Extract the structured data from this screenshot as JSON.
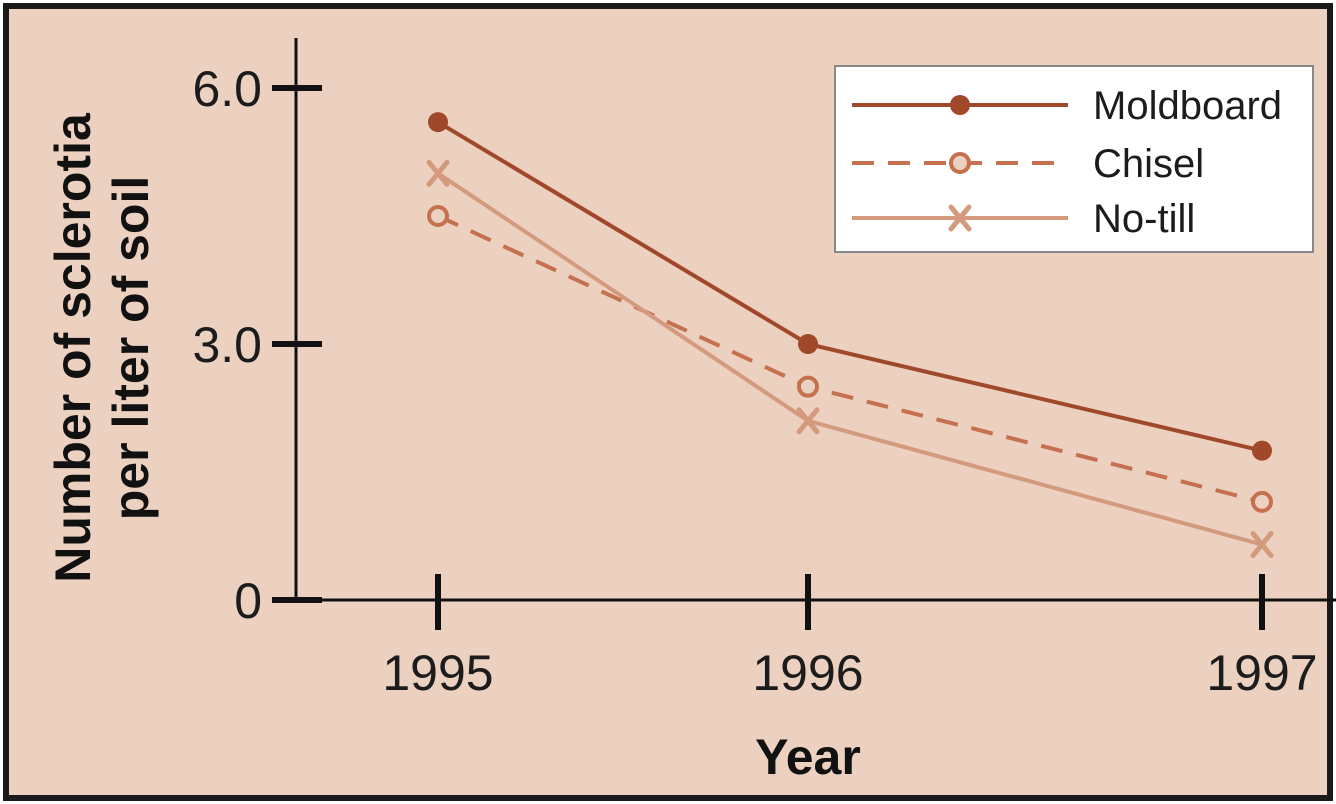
{
  "chart_data": {
    "type": "line",
    "title": "",
    "xlabel": "Year",
    "ylabel_lines": [
      "Number of sclerotia",
      "per liter of soil"
    ],
    "categories": [
      "1995",
      "1996",
      "1997"
    ],
    "y_ticks": [
      "0",
      "3.0",
      "6.0"
    ],
    "ylim": [
      0,
      6.5
    ],
    "grid": false,
    "legend_position": "top-right",
    "series": [
      {
        "name": "Moldboard",
        "values": [
          5.6,
          3.0,
          1.75
        ],
        "color": "#a0482a",
        "dash": "solid",
        "marker": "filled-circle"
      },
      {
        "name": "Chisel",
        "values": [
          4.5,
          2.5,
          1.15
        ],
        "color": "#c5704e",
        "dash": "dashed",
        "marker": "open-circle"
      },
      {
        "name": "No-till",
        "values": [
          5.0,
          2.1,
          0.65
        ],
        "color": "#d49a7e",
        "dash": "solid",
        "marker": "x"
      }
    ],
    "colors": {
      "background": "#ecd0c0",
      "frame": "#1a1a1a",
      "axis": "#111111"
    }
  }
}
